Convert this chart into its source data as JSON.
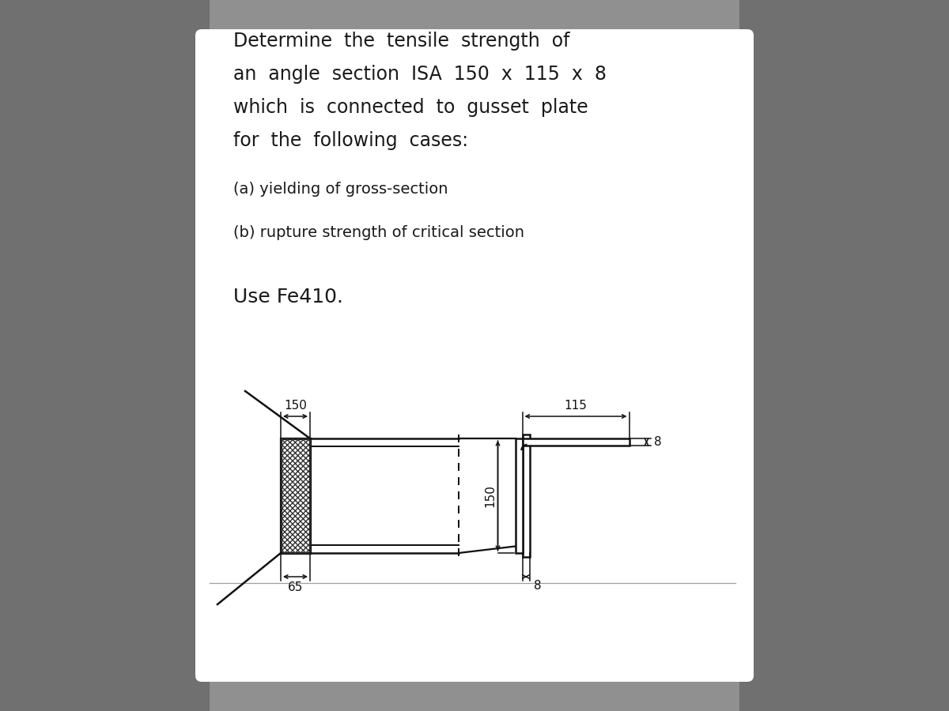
{
  "title_lines": [
    "Determine  the  tensile  strength  of",
    "an  angle  section  ISA  150  x  115  x  8",
    "which  is  connected  to  gusset  plate",
    "for  the  following  cases:"
  ],
  "sub_items": [
    "(a) yielding of gross-section",
    "(b) rupture strength of critical section"
  ],
  "use_line": "Use Fe410.",
  "bg_gradient_top": "#8a8a8a",
  "bg_gradient_mid": "#b0b0b0",
  "card_bg": "#d8d8d8",
  "white_card": "#ffffff",
  "text_color": "#1a1a1a",
  "dim_color": "#111111",
  "title_fontsize": 17,
  "sub_fontsize": 14,
  "use_fontsize": 18,
  "diagram_labels": {
    "l150_top": "150",
    "l65": "65",
    "l150_vert": "150",
    "l115": "115",
    "l8_top": "8",
    "l8_bot": "8"
  }
}
